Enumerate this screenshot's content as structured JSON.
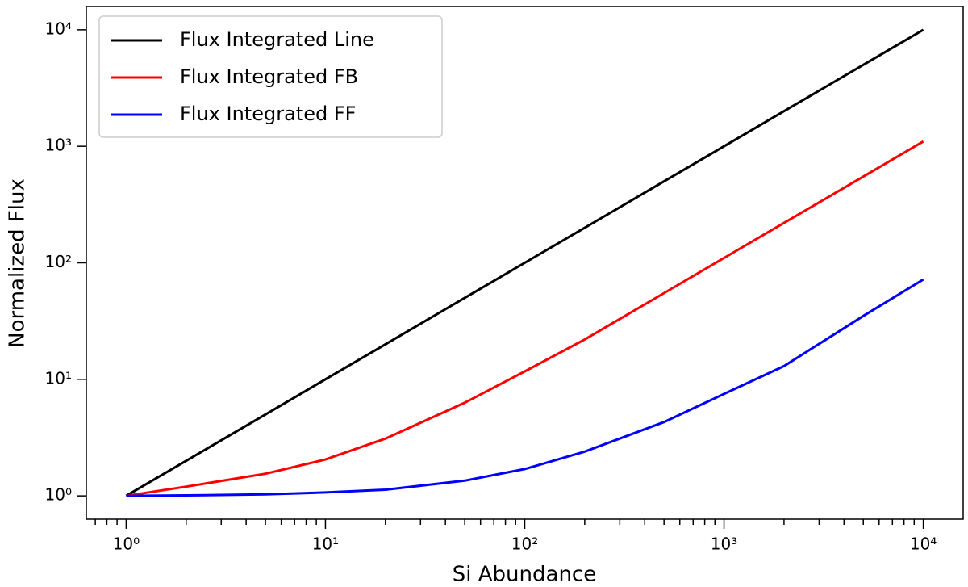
{
  "chart_data": {
    "type": "line",
    "x_label": "Si Abundance",
    "y_label": "Normalized Flux",
    "x": [
      1,
      2,
      5,
      10,
      20,
      50,
      100,
      200,
      500,
      1000,
      2000,
      5000,
      10000
    ],
    "series": [
      {
        "name": "Flux Integrated Line",
        "color": "#000000",
        "values": [
          1,
          2,
          5,
          10,
          20,
          50,
          100,
          200,
          500,
          1000,
          2000,
          5000,
          10000
        ]
      },
      {
        "name": "Flux Integrated FB",
        "color": "#ff0000",
        "values": [
          1,
          1.2,
          1.55,
          2.05,
          3.1,
          6.3,
          11.7,
          22,
          55,
          110,
          220,
          550,
          1100
        ]
      },
      {
        "name": "Flux Integrated FF",
        "color": "#0000ff",
        "values": [
          1,
          1.01,
          1.03,
          1.07,
          1.13,
          1.35,
          1.7,
          2.4,
          4.3,
          7.5,
          13,
          35,
          72
        ]
      }
    ],
    "xscale": "log",
    "yscale": "log",
    "xlim": [
      0.631,
      15849
    ],
    "ylim": [
      0.631,
      15849
    ],
    "xticks": [
      {
        "value": 1,
        "label": "10⁰"
      },
      {
        "value": 10,
        "label": "10¹"
      },
      {
        "value": 100,
        "label": "10²"
      },
      {
        "value": 1000,
        "label": "10³"
      },
      {
        "value": 10000,
        "label": "10⁴"
      }
    ],
    "xminorticks": [
      0.7,
      0.8,
      0.9,
      2,
      3,
      4,
      5,
      6,
      7,
      8,
      9,
      20,
      30,
      40,
      50,
      60,
      70,
      80,
      90,
      200,
      300,
      400,
      500,
      600,
      700,
      800,
      900,
      2000,
      3000,
      4000,
      5000,
      6000,
      7000,
      8000,
      9000
    ],
    "yticks": [
      {
        "value": 1,
        "label": "10⁰"
      },
      {
        "value": 10,
        "label": "10¹"
      },
      {
        "value": 100,
        "label": "10²"
      },
      {
        "value": 1000,
        "label": "10³"
      },
      {
        "value": 10000,
        "label": "10⁴"
      }
    ],
    "legend": "upper left",
    "grid": false
  }
}
